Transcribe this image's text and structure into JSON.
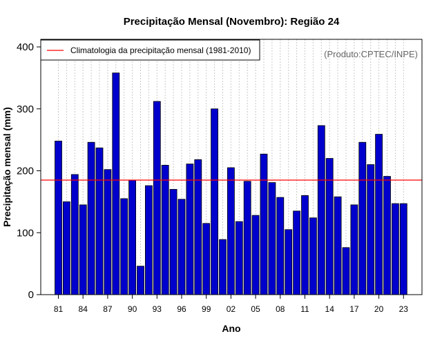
{
  "chart_data": {
    "type": "bar",
    "title": "Precipitação Mensal (Novembro): Região 24",
    "xlabel": "Ano",
    "ylabel": "Precipitação mensal (mm)",
    "credit": "(Produto:CPTEC/INPE)",
    "ylim": [
      0,
      400
    ],
    "yticks": [
      0,
      100,
      200,
      300,
      400
    ],
    "categories": [
      1981,
      1982,
      1983,
      1984,
      1985,
      1986,
      1987,
      1988,
      1989,
      1990,
      1991,
      1992,
      1993,
      1994,
      1995,
      1996,
      1997,
      1998,
      1999,
      2000,
      2001,
      2002,
      2003,
      2004,
      2005,
      2006,
      2007,
      2008,
      2009,
      2010,
      2011,
      2012,
      2013,
      2014,
      2015,
      2016,
      2017,
      2018,
      2019,
      2020,
      2021,
      2022,
      2023
    ],
    "values": [
      248,
      150,
      194,
      145,
      246,
      237,
      202,
      358,
      155,
      185,
      46,
      176,
      312,
      209,
      170,
      154,
      211,
      218,
      115,
      300,
      89,
      205,
      118,
      183,
      128,
      227,
      181,
      157,
      105,
      135,
      160,
      124,
      273,
      220,
      158,
      76,
      145,
      246,
      210,
      259,
      191,
      147,
      147
    ],
    "xtick_labels": [
      "81",
      "84",
      "87",
      "90",
      "93",
      "96",
      "99",
      "02",
      "05",
      "08",
      "11",
      "14",
      "17",
      "20",
      "23"
    ],
    "xtick_years": [
      1981,
      1984,
      1987,
      1990,
      1993,
      1996,
      1999,
      2002,
      2005,
      2008,
      2011,
      2014,
      2017,
      2020,
      2023
    ],
    "climatology": {
      "label": "Climatologia da precipitação mensal (1981-2010)",
      "value": 185,
      "color": "#ff0000"
    },
    "bar_color": "#0000cd",
    "grid": true,
    "legend_position": "top-left"
  }
}
